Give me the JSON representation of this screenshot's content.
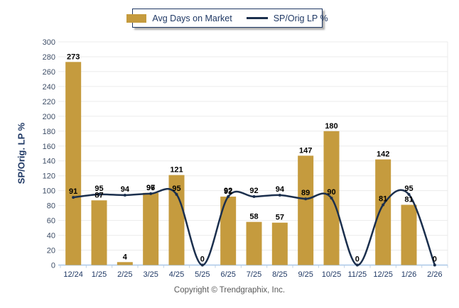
{
  "legend": {
    "bar_label": "Avg Days on Market",
    "line_label": "SP/Orig LP %"
  },
  "y_axis": {
    "title": "SP/Orig. LP %",
    "min": 0,
    "max": 300,
    "step": 20,
    "tick_labels": [
      "0",
      "20",
      "40",
      "60",
      "80",
      "100",
      "120",
      "140",
      "160",
      "180",
      "200",
      "220",
      "240",
      "260",
      "280",
      "300"
    ]
  },
  "footer": {
    "copyright": "Copyright © Trendgraphix, Inc."
  },
  "colors": {
    "bar": "#C59B3E",
    "line": "#1B2F4D",
    "x_label": "#1F3864",
    "y_label": "#3D4D66",
    "gridline": "#EBEBEB",
    "baseline": "#A9C7E7",
    "tick": "#BFD0E4",
    "data_label": "#000000",
    "legend_border": "#1F3864",
    "copyright_text": "#595959"
  },
  "chart_data": {
    "type": "bar",
    "subtype": "bar+line combo",
    "categories": [
      "12/24",
      "1/25",
      "2/25",
      "3/25",
      "4/25",
      "5/25",
      "6/25",
      "7/25",
      "8/25",
      "9/25",
      "10/25",
      "11/25",
      "12/25",
      "1/26",
      "2/26"
    ],
    "series": [
      {
        "name": "Avg Days on Market",
        "type": "bar",
        "values": [
          273,
          87,
          4,
          97,
          121,
          0,
          92,
          58,
          57,
          147,
          180,
          0,
          142,
          81,
          0
        ]
      },
      {
        "name": "SP/Orig LP %",
        "type": "line",
        "values": [
          91,
          95,
          94,
          96,
          95,
          0,
          92,
          92,
          94,
          89,
          90,
          0,
          81,
          95,
          0
        ]
      }
    ],
    "title": "",
    "xlabel": "",
    "ylabel": "SP/Orig. LP %",
    "ylim": [
      0,
      300
    ],
    "grid": "horizontal",
    "legend_position": "top-center",
    "data_labels": true
  }
}
